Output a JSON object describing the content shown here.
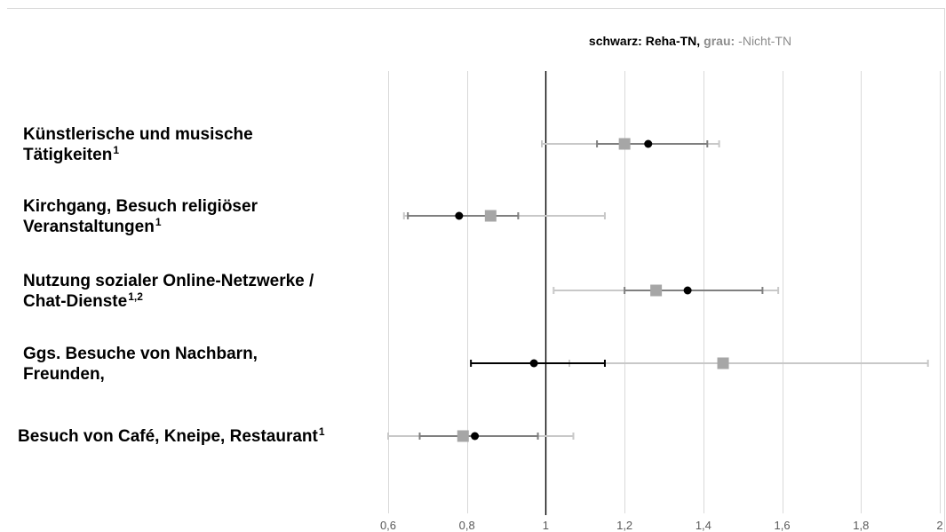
{
  "chart_data": {
    "type": "forest",
    "legend": {
      "primary_label": "schwarz: Reha-TN,",
      "primary_color": "#000000",
      "secondary_label": "grau:",
      "secondary_suffix": "-Nicht-TN",
      "secondary_color": "#8c8c8c"
    },
    "x_ticks": [
      "0,6",
      "0,8",
      "1",
      "1,2",
      "1,4",
      "1,6",
      "1,8",
      "2"
    ],
    "xlim": [
      0.6,
      2.0
    ],
    "reference_value": 1.0,
    "rows": [
      {
        "label_lines": [
          "Künstlerische und musische",
          "Tätigkeiten"
        ],
        "superscript": "1",
        "reha": {
          "estimate": 1.26,
          "lower": 1.13,
          "upper": 1.41
        },
        "non_reha": {
          "estimate": 1.2,
          "lower": 0.99,
          "upper": 1.44
        }
      },
      {
        "label_lines": [
          "Kirchgang, Besuch religiöser",
          "Veranstaltungen"
        ],
        "superscript": "1",
        "reha": {
          "estimate": 0.78,
          "lower": 0.65,
          "upper": 0.93
        },
        "non_reha": {
          "estimate": 0.86,
          "lower": 0.64,
          "upper": 1.15
        }
      },
      {
        "label_lines": [
          "Nutzung sozialer Online-Netzwerke /",
          "Chat-Dienste"
        ],
        "superscript": "1,2",
        "reha": {
          "estimate": 1.36,
          "lower": 1.2,
          "upper": 1.55
        },
        "non_reha": {
          "estimate": 1.28,
          "lower": 1.02,
          "upper": 1.59
        }
      },
      {
        "label_lines": [
          "Ggs. Besuche von Nachbarn,",
          "Freunden,"
        ],
        "superscript": "",
        "reha": {
          "estimate": 0.97,
          "lower": 0.81,
          "upper": 1.15
        },
        "non_reha": {
          "estimate": 1.45,
          "lower": 1.06,
          "upper": 1.97
        }
      },
      {
        "label_lines": [
          "Besuch von Café, Kneipe, Restaurant"
        ],
        "superscript": "1",
        "reha": {
          "estimate": 0.82,
          "lower": 0.68,
          "upper": 0.98
        },
        "non_reha": {
          "estimate": 0.79,
          "lower": 0.6,
          "upper": 1.07
        }
      }
    ],
    "colors": {
      "reha_marker": "#000000",
      "reha_line": "#7f7f7f",
      "reha_line_row4": "#000000",
      "non_reha_marker": "#a6a6a6",
      "non_reha_line": "#c8c8c8",
      "grid": "#d9d9d9"
    }
  }
}
